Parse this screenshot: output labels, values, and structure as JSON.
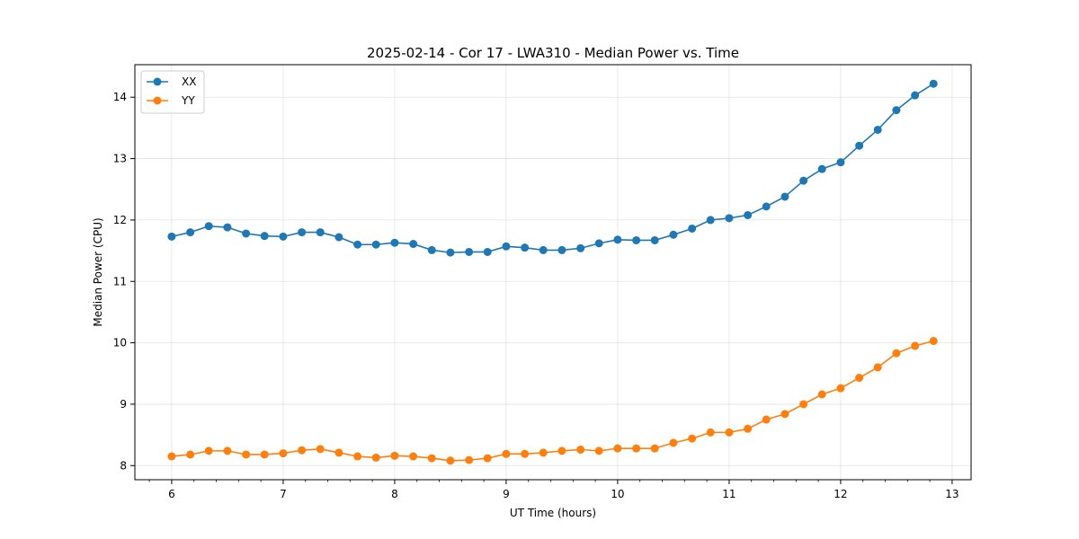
{
  "chart_data": {
    "type": "line",
    "title": "2025-02-14 - Cor 17 - LWA310 - Median Power vs. Time",
    "xlabel": "UT Time (hours)",
    "ylabel": "Median Power (CPU)",
    "xlim": [
      5.67,
      13.17
    ],
    "ylim": [
      7.77,
      14.53
    ],
    "xticks": [
      6,
      7,
      8,
      9,
      10,
      11,
      12,
      13
    ],
    "yticks": [
      8,
      9,
      10,
      11,
      12,
      13,
      14
    ],
    "grid": true,
    "legend_position": "top-left",
    "x": [
      6.0,
      6.167,
      6.333,
      6.5,
      6.667,
      6.833,
      7.0,
      7.167,
      7.333,
      7.5,
      7.667,
      7.833,
      8.0,
      8.167,
      8.333,
      8.5,
      8.667,
      8.833,
      9.0,
      9.167,
      9.333,
      9.5,
      9.667,
      9.833,
      10.0,
      10.167,
      10.333,
      10.5,
      10.667,
      10.833,
      11.0,
      11.167,
      11.333,
      11.5,
      11.667,
      11.833,
      12.0,
      12.167,
      12.333,
      12.5,
      12.667,
      12.833
    ],
    "series": [
      {
        "name": "XX",
        "color": "#1f77b4",
        "values": [
          11.73,
          11.8,
          11.9,
          11.88,
          11.78,
          11.74,
          11.73,
          11.8,
          11.8,
          11.72,
          11.6,
          11.6,
          11.63,
          11.61,
          11.51,
          11.47,
          11.48,
          11.48,
          11.57,
          11.55,
          11.51,
          11.51,
          11.54,
          11.62,
          11.68,
          11.67,
          11.67,
          11.76,
          11.86,
          12.0,
          12.03,
          12.08,
          12.22,
          12.38,
          12.64,
          12.83,
          12.94,
          13.21,
          13.47,
          13.79,
          14.03,
          14.22
        ]
      },
      {
        "name": "YY",
        "color": "#ff7f0e",
        "values": [
          8.15,
          8.18,
          8.24,
          8.24,
          8.18,
          8.18,
          8.2,
          8.25,
          8.27,
          8.21,
          8.15,
          8.13,
          8.16,
          8.15,
          8.12,
          8.08,
          8.09,
          8.12,
          8.19,
          8.19,
          8.21,
          8.24,
          8.26,
          8.24,
          8.28,
          8.28,
          8.28,
          8.37,
          8.44,
          8.54,
          8.54,
          8.6,
          8.75,
          8.84,
          9.0,
          9.16,
          9.26,
          9.43,
          9.6,
          9.83,
          9.95,
          10.03
        ]
      }
    ]
  }
}
